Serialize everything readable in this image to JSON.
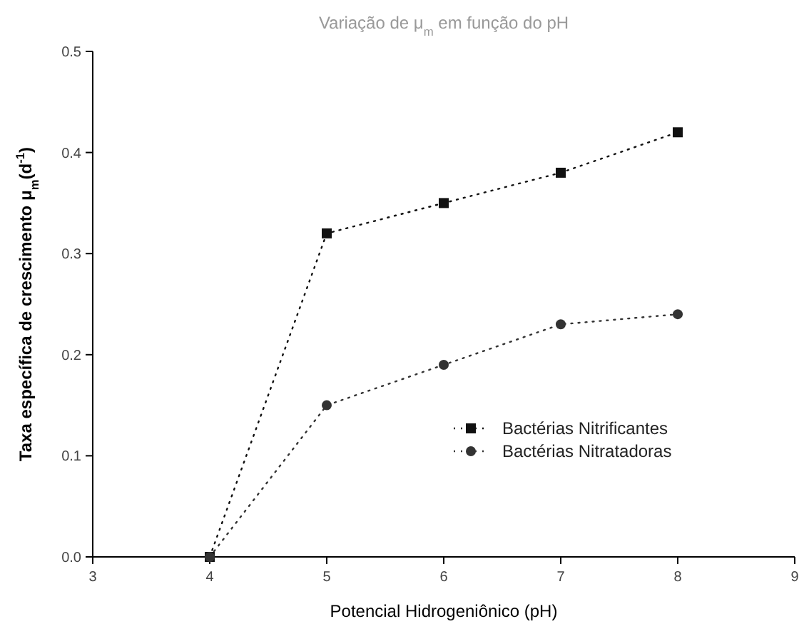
{
  "chart_data": {
    "type": "line",
    "title": "Variação de μ$_{m}$ em função do pH",
    "xlabel": "Potencial Hidrogeniônico (pH)",
    "ylabel": "Taxa específica de crescimento μ$_{m}$(d$^{-1}$)",
    "x": [
      4,
      5,
      6,
      7,
      8
    ],
    "series": [
      {
        "name": "Bactérias Nitrificantes",
        "color": "#111111",
        "marker": "square",
        "values": [
          0,
          0.32,
          0.35,
          0.38,
          0.42
        ]
      },
      {
        "name": "Bactérias Nitratadoras",
        "color": "#333333",
        "marker": "circle",
        "values": [
          0,
          0.15,
          0.19,
          0.23,
          0.24
        ]
      }
    ],
    "xlim": [
      3,
      9
    ],
    "xticks": [
      3,
      4,
      5,
      6,
      7,
      8,
      9
    ],
    "ylim": [
      0,
      0.5
    ],
    "yticks": [
      {
        "value": 0,
        "label": "0.0"
      },
      {
        "value": 0.1,
        "label": "0.1"
      },
      {
        "value": 0.2,
        "label": "0.2"
      },
      {
        "value": 0.3,
        "label": "0.3"
      },
      {
        "value": 0.4,
        "label": "0.4"
      },
      {
        "value": 0.5,
        "label": "0.5"
      }
    ],
    "line_style": "dotted",
    "legend": "right",
    "grid": false
  }
}
